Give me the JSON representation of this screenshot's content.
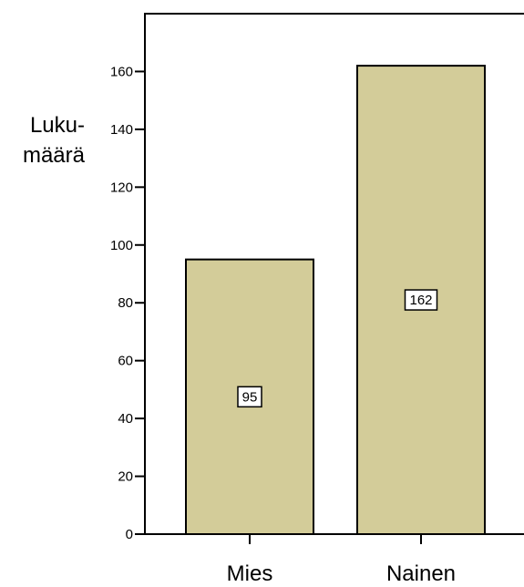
{
  "chart_data": {
    "type": "bar",
    "categories": [
      "Mies",
      "Nainen"
    ],
    "values": [
      95,
      162
    ],
    "data_labels": [
      "95",
      "162"
    ],
    "ylabel_lines": [
      "Luku-",
      "määrä"
    ],
    "ylim": [
      0,
      180
    ],
    "yticks": [
      0,
      20,
      40,
      60,
      80,
      100,
      120,
      140,
      160
    ],
    "grid": false,
    "bar_color": "#d3cc99",
    "bar_edge_color": "#000000"
  }
}
